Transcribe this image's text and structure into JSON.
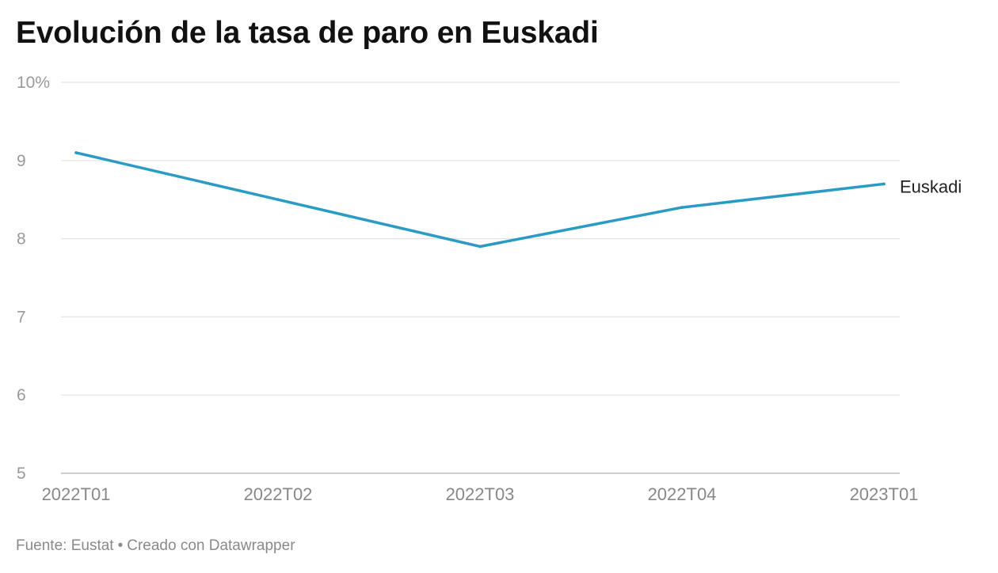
{
  "chart_data": {
    "type": "line",
    "title": "Evolución de la tasa de paro en Euskadi",
    "x": [
      "2022T01",
      "2022T02",
      "2022T03",
      "2022T04",
      "2023T01"
    ],
    "series": [
      {
        "name": "Euskadi",
        "values": [
          9.1,
          8.5,
          7.9,
          8.4,
          8.7
        ],
        "color": "#2a9bc4"
      }
    ],
    "ylim": [
      5,
      10
    ],
    "yticks": [
      5,
      6,
      7,
      8,
      9,
      10
    ],
    "ytick_labels": [
      "5",
      "6",
      "7",
      "8",
      "9",
      "10%"
    ],
    "grid": true,
    "xlabel": "",
    "ylabel": ""
  },
  "footer": {
    "source": "Fuente: Eustat",
    "separator": "•",
    "credit": "Creado con Datawrapper"
  }
}
